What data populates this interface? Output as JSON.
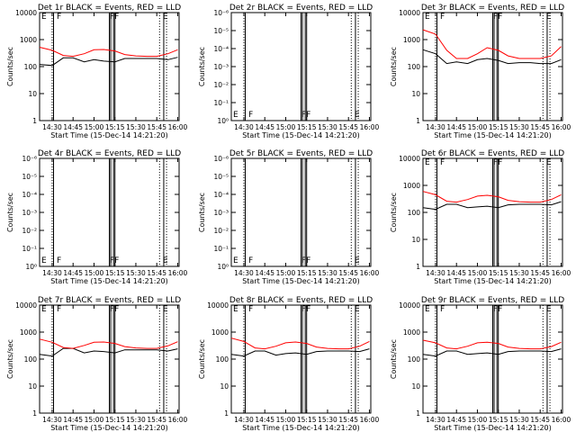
{
  "colors": {
    "events": "#000000",
    "lld": "#ff0000",
    "background": "#ffffff"
  },
  "xlabel": "Start Time (15-Dec-14 14:21:20)",
  "ylabel": "Counts/sec",
  "chart_data": [
    {
      "type": "line",
      "title": "Det 1r BLACK = Events, RED = LLD",
      "xticks": [
        "14:30",
        "14:45",
        "15:00",
        "15:15",
        "15:30",
        "15:45",
        "16:00"
      ],
      "yticks": [
        "1",
        "10",
        "100",
        "1000",
        "10000"
      ],
      "ylog": true,
      "markers": [
        "E",
        "F",
        "FF",
        "E"
      ],
      "series": [
        {
          "x": [
            "14:21",
            "14:30",
            "14:38",
            "14:45",
            "14:53",
            "15:00",
            "15:07",
            "15:15",
            "15:22",
            "15:30",
            "15:38",
            "15:45",
            "15:53",
            "16:00"
          ],
          "values": [
            120,
            110,
            210,
            210,
            150,
            180,
            160,
            150,
            200,
            200,
            200,
            200,
            180,
            220
          ]
        },
        {
          "x": [
            "14:21",
            "14:30",
            "14:38",
            "14:45",
            "14:53",
            "15:00",
            "15:07",
            "15:15",
            "15:22",
            "15:30",
            "15:38",
            "15:45",
            "15:53",
            "16:00"
          ],
          "values": [
            520,
            400,
            260,
            240,
            300,
            420,
            430,
            380,
            280,
            250,
            240,
            240,
            300,
            420
          ]
        }
      ]
    },
    {
      "type": "line",
      "title": "Det 2r BLACK = Events, RED = LLD",
      "xticks": [
        "14:30",
        "14:45",
        "15:00",
        "15:15",
        "15:30",
        "15:45",
        "16:00"
      ],
      "yticks": [
        "10⁰",
        "10⁻¹",
        "10⁻²",
        "10⁻³",
        "10⁻⁴",
        "10⁻⁵",
        "10⁻⁶"
      ],
      "ylog": true,
      "markers": [
        "E",
        "F",
        "FF",
        "E"
      ],
      "series": []
    },
    {
      "type": "line",
      "title": "Det 3r BLACK = Events, RED = LLD",
      "xticks": [
        "14:30",
        "14:45",
        "15:00",
        "15:15",
        "15:30",
        "15:45",
        "16:00"
      ],
      "yticks": [
        "1",
        "10",
        "100",
        "1000",
        "10000"
      ],
      "ylog": true,
      "markers": [
        "E",
        "F",
        "FF",
        "E"
      ],
      "series": [
        {
          "x": [
            "14:21",
            "14:30",
            "14:38",
            "14:45",
            "14:53",
            "15:00",
            "15:07",
            "15:15",
            "15:22",
            "15:30",
            "15:38",
            "15:45",
            "15:53",
            "16:00"
          ],
          "values": [
            420,
            300,
            130,
            150,
            130,
            180,
            200,
            170,
            130,
            140,
            140,
            130,
            130,
            180
          ]
        },
        {
          "x": [
            "14:21",
            "14:30",
            "14:38",
            "14:45",
            "14:53",
            "15:00",
            "15:07",
            "15:15",
            "15:22",
            "15:30",
            "15:38",
            "15:45",
            "15:53",
            "16:00"
          ],
          "values": [
            2300,
            1600,
            400,
            200,
            200,
            300,
            500,
            400,
            250,
            200,
            200,
            200,
            250,
            550
          ]
        }
      ]
    },
    {
      "type": "line",
      "title": "Det 4r BLACK = Events, RED = LLD",
      "xticks": [
        "14:30",
        "14:45",
        "15:00",
        "15:15",
        "15:30",
        "15:45",
        "16:00"
      ],
      "yticks": [
        "10⁰",
        "10⁻¹",
        "10⁻²",
        "10⁻³",
        "10⁻⁴",
        "10⁻⁵",
        "10⁻⁶"
      ],
      "ylog": true,
      "markers": [
        "E",
        "F",
        "FF",
        "E"
      ],
      "series": []
    },
    {
      "type": "line",
      "title": "Det 5r BLACK = Events, RED = LLD",
      "xticks": [
        "14:30",
        "14:45",
        "15:00",
        "15:15",
        "15:30",
        "15:45",
        "16:00"
      ],
      "yticks": [
        "10⁰",
        "10⁻¹",
        "10⁻²",
        "10⁻³",
        "10⁻⁴",
        "10⁻⁵",
        "10⁻⁶"
      ],
      "ylog": true,
      "markers": [
        "E",
        "F",
        "FF",
        "E"
      ],
      "series": []
    },
    {
      "type": "line",
      "title": "Det 6r BLACK = Events, RED = LLD",
      "xticks": [
        "14:30",
        "14:45",
        "15:00",
        "15:15",
        "15:30",
        "15:45",
        "16:00"
      ],
      "yticks": [
        "1",
        "10",
        "100",
        "1000",
        "10000"
      ],
      "ylog": true,
      "markers": [
        "E",
        "F",
        "FF",
        "E"
      ],
      "series": [
        {
          "x": [
            "14:21",
            "14:30",
            "14:38",
            "14:45",
            "14:53",
            "15:00",
            "15:07",
            "15:15",
            "15:22",
            "15:30",
            "15:38",
            "15:45",
            "15:53",
            "16:00"
          ],
          "values": [
            150,
            130,
            200,
            200,
            150,
            160,
            170,
            150,
            190,
            200,
            200,
            200,
            190,
            250
          ]
        },
        {
          "x": [
            "14:21",
            "14:30",
            "14:38",
            "14:45",
            "14:53",
            "15:00",
            "15:07",
            "15:15",
            "15:22",
            "15:30",
            "15:38",
            "15:45",
            "15:53",
            "16:00"
          ],
          "values": [
            600,
            450,
            260,
            240,
            300,
            400,
            430,
            380,
            280,
            250,
            240,
            240,
            300,
            450
          ]
        }
      ]
    },
    {
      "type": "line",
      "title": "Det 7r BLACK = Events, RED = LLD",
      "xticks": [
        "14:30",
        "14:45",
        "15:00",
        "15:15",
        "15:30",
        "15:45",
        "16:00"
      ],
      "yticks": [
        "1",
        "10",
        "100",
        "1000",
        "10000"
      ],
      "ylog": true,
      "markers": [
        "E",
        "F",
        "FF",
        "E"
      ],
      "series": [
        {
          "x": [
            "14:21",
            "14:30",
            "14:38",
            "14:45",
            "14:53",
            "15:00",
            "15:07",
            "15:15",
            "15:22",
            "15:30",
            "15:38",
            "15:45",
            "15:53",
            "16:00"
          ],
          "values": [
            150,
            130,
            250,
            250,
            170,
            200,
            190,
            170,
            220,
            220,
            220,
            220,
            200,
            240
          ]
        },
        {
          "x": [
            "14:21",
            "14:30",
            "14:38",
            "14:45",
            "14:53",
            "15:00",
            "15:07",
            "15:15",
            "15:22",
            "15:30",
            "15:38",
            "15:45",
            "15:53",
            "16:00"
          ],
          "values": [
            550,
            420,
            270,
            250,
            320,
            420,
            430,
            380,
            290,
            260,
            250,
            250,
            310,
            440
          ]
        }
      ]
    },
    {
      "type": "line",
      "title": "Det 8r BLACK = Events, RED = LLD",
      "xticks": [
        "14:30",
        "14:45",
        "15:00",
        "15:15",
        "15:30",
        "15:45",
        "16:00"
      ],
      "yticks": [
        "1",
        "10",
        "100",
        "1000",
        "10000"
      ],
      "ylog": true,
      "markers": [
        "E",
        "F",
        "FF",
        "E"
      ],
      "series": [
        {
          "x": [
            "14:21",
            "14:30",
            "14:38",
            "14:45",
            "14:53",
            "15:00",
            "15:07",
            "15:15",
            "15:22",
            "15:30",
            "15:38",
            "15:45",
            "15:53",
            "16:00"
          ],
          "values": [
            150,
            130,
            200,
            200,
            140,
            160,
            170,
            150,
            190,
            200,
            200,
            200,
            190,
            240
          ]
        },
        {
          "x": [
            "14:21",
            "14:30",
            "14:38",
            "14:45",
            "14:53",
            "15:00",
            "15:07",
            "15:15",
            "15:22",
            "15:30",
            "15:38",
            "15:45",
            "15:53",
            "16:00"
          ],
          "values": [
            600,
            450,
            260,
            240,
            300,
            400,
            430,
            380,
            280,
            250,
            240,
            240,
            300,
            450
          ]
        }
      ]
    },
    {
      "type": "line",
      "title": "Det 9r BLACK = Events, RED = LLD",
      "xticks": [
        "14:30",
        "14:45",
        "15:00",
        "15:15",
        "15:30",
        "15:45",
        "16:00"
      ],
      "yticks": [
        "1",
        "10",
        "100",
        "1000",
        "10000"
      ],
      "ylog": true,
      "markers": [
        "E",
        "F",
        "FF",
        "E"
      ],
      "series": [
        {
          "x": [
            "14:21",
            "14:30",
            "14:38",
            "14:45",
            "14:53",
            "15:00",
            "15:07",
            "15:15",
            "15:22",
            "15:30",
            "15:38",
            "15:45",
            "15:53",
            "16:00"
          ],
          "values": [
            150,
            130,
            200,
            200,
            150,
            160,
            170,
            150,
            190,
            200,
            200,
            200,
            190,
            240
          ]
        },
        {
          "x": [
            "14:21",
            "14:30",
            "14:38",
            "14:45",
            "14:53",
            "15:00",
            "15:07",
            "15:15",
            "15:22",
            "15:30",
            "15:38",
            "15:45",
            "15:53",
            "16:00"
          ],
          "values": [
            500,
            400,
            260,
            240,
            300,
            400,
            420,
            380,
            280,
            250,
            240,
            240,
            290,
            420
          ]
        }
      ]
    }
  ]
}
